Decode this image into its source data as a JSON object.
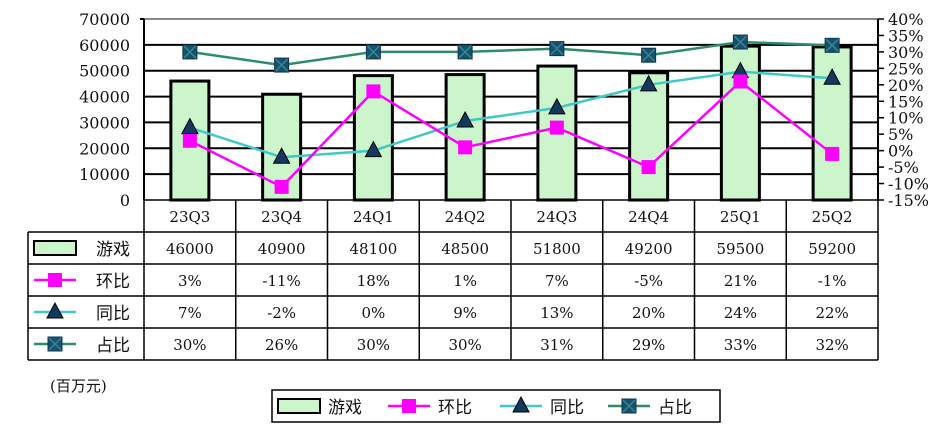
{
  "chart_data": {
    "type": "bar",
    "categories": [
      "23Q3",
      "23Q4",
      "24Q1",
      "24Q2",
      "24Q3",
      "24Q4",
      "25Q1",
      "25Q2"
    ],
    "unit_label": "(百万元)",
    "y_left": {
      "ticks": [
        "70000",
        "60000",
        "50000",
        "40000",
        "30000",
        "20000",
        "10000",
        "0"
      ],
      "ylim": [
        0,
        70000
      ]
    },
    "y_right": {
      "ticks": [
        "40%",
        "35%",
        "30%",
        "25%",
        "20%",
        "15%",
        "10%",
        "5%",
        "0%",
        "-5%",
        "-10%",
        "-15%"
      ],
      "ylim": [
        -15,
        40
      ]
    },
    "grid": true,
    "legend_placement": "bottom",
    "series": [
      {
        "name": "游戏",
        "kind": "bar",
        "axis": "left",
        "color": "#ccf5cc",
        "values": [
          46000,
          40900,
          48100,
          48500,
          51800,
          49200,
          59500,
          59200
        ],
        "labels": [
          "46000",
          "40900",
          "48100",
          "48500",
          "51800",
          "49200",
          "59500",
          "59200"
        ]
      },
      {
        "name": "环比",
        "kind": "line",
        "axis": "right",
        "color": "#ff00ff",
        "marker": "square",
        "values": [
          3,
          -11,
          18,
          1,
          7,
          -5,
          21,
          -1
        ],
        "labels": [
          "3%",
          "-11%",
          "18%",
          "1%",
          "7%",
          "-5%",
          "21%",
          "-1%"
        ]
      },
      {
        "name": "同比",
        "kind": "line",
        "axis": "right",
        "color": "#40c8c8",
        "marker": "triangle",
        "values": [
          7,
          -2,
          0,
          9,
          13,
          20,
          24,
          22
        ],
        "labels": [
          "7%",
          "-2%",
          "0%",
          "9%",
          "13%",
          "20%",
          "24%",
          "22%"
        ]
      },
      {
        "name": "占比",
        "kind": "line",
        "axis": "right",
        "color": "#2e8b6b",
        "marker": "x-square",
        "values": [
          30,
          26,
          30,
          30,
          31,
          29,
          33,
          32
        ],
        "labels": [
          "30%",
          "26%",
          "30%",
          "30%",
          "31%",
          "29%",
          "33%",
          "32%"
        ]
      }
    ]
  }
}
